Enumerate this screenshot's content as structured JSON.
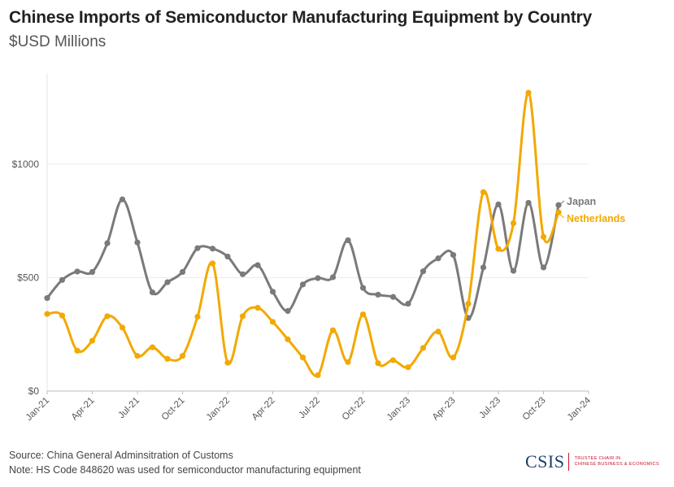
{
  "header": {
    "title": "Chinese Imports of Semiconductor Manufacturing Equipment by Country",
    "subtitle": "$USD Millions"
  },
  "footer": {
    "source": "Source: China General Adminsitration of Customs",
    "note": "Note: HS Code 848620 was used for semiconductor manufacturing equipment"
  },
  "logo": {
    "word": "CSIS",
    "tagline_1": "TRUSTEE CHAIR IN",
    "tagline_2": "CHINESE BUSINESS & ECONOMICS"
  },
  "chart_data": {
    "type": "line",
    "ylim": [
      0,
      1400
    ],
    "yticks": [
      0,
      500,
      1000
    ],
    "ytick_labels": [
      "$0",
      "$500",
      "$1000"
    ],
    "xticks": [
      "Jan-21",
      "Apr-21",
      "Jul-21",
      "Oct-21",
      "Jan-22",
      "Apr-22",
      "Jul-22",
      "Oct-22",
      "Jan-23",
      "Apr-23",
      "Jul-23",
      "Oct-23",
      "Jan-24"
    ],
    "x": [
      "Jan-21",
      "Feb-21",
      "Mar-21",
      "Apr-21",
      "May-21",
      "Jun-21",
      "Jul-21",
      "Aug-21",
      "Sep-21",
      "Oct-21",
      "Nov-21",
      "Dec-21",
      "Jan-22",
      "Feb-22",
      "Mar-22",
      "Apr-22",
      "May-22",
      "Jun-22",
      "Jul-22",
      "Aug-22",
      "Sep-22",
      "Oct-22",
      "Nov-22",
      "Dec-22",
      "Jan-23",
      "Feb-23",
      "Mar-23",
      "Apr-23",
      "May-23",
      "Jun-23",
      "Jul-23",
      "Aug-23",
      "Sep-23",
      "Oct-23",
      "Nov-23"
    ],
    "grid": true,
    "series": [
      {
        "name": "Japan",
        "color": "#7a7a7a",
        "values": [
          410,
          490,
          527,
          525,
          652,
          845,
          655,
          435,
          480,
          525,
          630,
          628,
          593,
          515,
          555,
          438,
          353,
          470,
          498,
          502,
          665,
          455,
          425,
          415,
          385,
          528,
          585,
          600,
          322,
          545,
          823,
          530,
          830,
          545,
          820
        ]
      },
      {
        "name": "Netherlands",
        "color": "#f2a900",
        "values": [
          340,
          333,
          178,
          222,
          330,
          280,
          155,
          193,
          142,
          155,
          328,
          563,
          125,
          330,
          367,
          305,
          228,
          148,
          70,
          268,
          128,
          338,
          123,
          136,
          105,
          190,
          262,
          148,
          385,
          877,
          627,
          740,
          1315,
          680,
          788
        ]
      }
    ]
  }
}
